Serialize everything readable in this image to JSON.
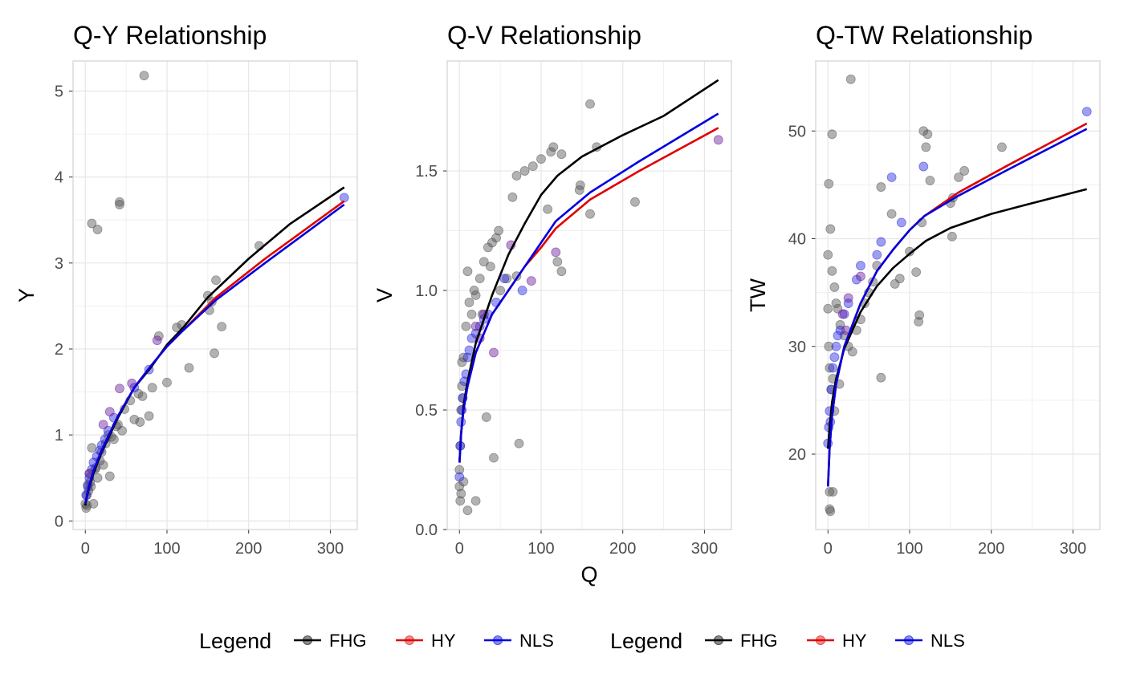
{
  "legend": {
    "title": "Legend",
    "items": [
      "FHG",
      "HY",
      "NLS"
    ]
  },
  "colors": {
    "FHG": "#000000",
    "HY": "#e00000",
    "NLS": "#0000e0",
    "grid": "#e6e6e6",
    "panel_border": "#d2d2d2",
    "tick_text": "#4d4d4d"
  },
  "chart_data": [
    {
      "type": "scatter",
      "title": "Q-Y Relationship",
      "xlabel": "",
      "ylabel": "Y",
      "xlim": [
        -15,
        333
      ],
      "ylim": [
        -0.1,
        5.35
      ],
      "xticks": [
        0,
        100,
        200,
        300
      ],
      "yticks": [
        0,
        1,
        2,
        3,
        4,
        5
      ],
      "grid": true,
      "points_gray": [
        [
          72,
          5.18
        ],
        [
          8,
          3.46
        ],
        [
          15,
          3.39
        ],
        [
          42,
          3.71
        ],
        [
          42,
          3.68
        ],
        [
          213,
          3.2
        ],
        [
          160,
          2.8
        ],
        [
          150,
          2.62
        ],
        [
          155,
          2.55
        ],
        [
          152,
          2.45
        ],
        [
          167,
          2.26
        ],
        [
          118,
          2.28
        ],
        [
          112,
          2.25
        ],
        [
          90,
          2.15
        ],
        [
          158,
          1.95
        ],
        [
          127,
          1.78
        ],
        [
          100,
          1.61
        ],
        [
          82,
          1.55
        ],
        [
          78,
          1.22
        ],
        [
          70,
          1.45
        ],
        [
          60,
          1.18
        ],
        [
          67,
          1.15
        ],
        [
          48,
          1.3
        ],
        [
          38,
          1.1
        ],
        [
          28,
          1.0
        ],
        [
          30,
          0.52
        ],
        [
          20,
          0.8
        ],
        [
          12,
          0.6
        ],
        [
          8,
          0.85
        ],
        [
          3,
          0.42
        ],
        [
          1,
          0.15
        ],
        [
          0,
          0.2
        ],
        [
          10,
          0.2
        ],
        [
          5,
          0.55
        ],
        [
          18,
          0.7
        ],
        [
          25,
          0.9
        ],
        [
          35,
          0.95
        ],
        [
          45,
          1.05
        ],
        [
          55,
          1.4
        ],
        [
          65,
          1.48
        ],
        [
          2,
          0.3
        ],
        [
          4,
          0.35
        ],
        [
          6,
          0.45
        ],
        [
          15,
          0.5
        ],
        [
          22,
          0.65
        ],
        [
          2,
          0.18
        ],
        [
          7,
          0.4
        ],
        [
          13,
          0.62
        ],
        [
          32,
          0.98
        ],
        [
          40,
          1.12
        ]
      ],
      "points_purple": [
        [
          42,
          1.54
        ],
        [
          30,
          1.27
        ],
        [
          22,
          1.12
        ],
        [
          57,
          1.6
        ],
        [
          88,
          2.1
        ],
        [
          5,
          0.55
        ]
      ],
      "points_blue": [
        [
          317,
          3.76
        ],
        [
          60,
          1.55
        ],
        [
          78,
          1.76
        ],
        [
          35,
          1.2
        ],
        [
          28,
          1.05
        ],
        [
          20,
          0.88
        ],
        [
          14,
          0.75
        ],
        [
          8,
          0.6
        ],
        [
          5,
          0.5
        ],
        [
          3,
          0.4
        ],
        [
          1,
          0.3
        ],
        [
          10,
          0.68
        ],
        [
          18,
          0.82
        ],
        [
          24,
          0.95
        ]
      ],
      "lines": {
        "FHG": [
          [
            0,
            0.18
          ],
          [
            2,
            0.28
          ],
          [
            5,
            0.4
          ],
          [
            10,
            0.55
          ],
          [
            20,
            0.8
          ],
          [
            40,
            1.2
          ],
          [
            60,
            1.55
          ],
          [
            80,
            1.78
          ],
          [
            100,
            2.05
          ],
          [
            120,
            2.25
          ],
          [
            150,
            2.6
          ],
          [
            200,
            3.05
          ],
          [
            250,
            3.45
          ],
          [
            317,
            3.88
          ]
        ],
        "HY": [
          [
            0,
            0.2
          ],
          [
            2,
            0.3
          ],
          [
            5,
            0.42
          ],
          [
            10,
            0.58
          ],
          [
            20,
            0.82
          ],
          [
            40,
            1.22
          ],
          [
            60,
            1.55
          ],
          [
            80,
            1.8
          ],
          [
            100,
            2.03
          ],
          [
            118,
            2.2
          ],
          [
            160,
            2.6
          ],
          [
            220,
            3.05
          ],
          [
            317,
            3.72
          ]
        ],
        "NLS": [
          [
            0,
            0.2
          ],
          [
            2,
            0.3
          ],
          [
            5,
            0.42
          ],
          [
            10,
            0.58
          ],
          [
            20,
            0.82
          ],
          [
            40,
            1.22
          ],
          [
            60,
            1.55
          ],
          [
            80,
            1.8
          ],
          [
            100,
            2.03
          ],
          [
            118,
            2.2
          ],
          [
            160,
            2.57
          ],
          [
            220,
            3.0
          ],
          [
            317,
            3.68
          ]
        ]
      }
    },
    {
      "type": "scatter",
      "title": "Q-V Relationship",
      "xlabel": "Q",
      "ylabel": "V",
      "xlim": [
        -15,
        333
      ],
      "ylim": [
        0.0,
        1.96
      ],
      "xticks": [
        0,
        100,
        200,
        300
      ],
      "yticks": [
        0.0,
        0.5,
        1.0,
        1.5
      ],
      "grid": true,
      "points_gray": [
        [
          160,
          1.78
        ],
        [
          115,
          1.6
        ],
        [
          112,
          1.58
        ],
        [
          125,
          1.57
        ],
        [
          100,
          1.55
        ],
        [
          90,
          1.52
        ],
        [
          80,
          1.5
        ],
        [
          70,
          1.48
        ],
        [
          168,
          1.6
        ],
        [
          148,
          1.44
        ],
        [
          147,
          1.42
        ],
        [
          160,
          1.32
        ],
        [
          215,
          1.37
        ],
        [
          108,
          1.34
        ],
        [
          65,
          1.39
        ],
        [
          120,
          1.12
        ],
        [
          125,
          1.08
        ],
        [
          70,
          1.06
        ],
        [
          48,
          1.25
        ],
        [
          45,
          1.22
        ],
        [
          40,
          1.2
        ],
        [
          35,
          1.18
        ],
        [
          30,
          1.12
        ],
        [
          25,
          1.05
        ],
        [
          20,
          0.98
        ],
        [
          15,
          0.9
        ],
        [
          10,
          1.08
        ],
        [
          8,
          0.85
        ],
        [
          5,
          0.72
        ],
        [
          3,
          0.6
        ],
        [
          2,
          0.5
        ],
        [
          1,
          0.35
        ],
        [
          0,
          0.25
        ],
        [
          0,
          0.18
        ],
        [
          1,
          0.12
        ],
        [
          10,
          0.08
        ],
        [
          20,
          0.12
        ],
        [
          42,
          0.3
        ],
        [
          73,
          0.36
        ],
        [
          33,
          0.47
        ],
        [
          5,
          0.2
        ],
        [
          2,
          0.15
        ],
        [
          3,
          0.7
        ],
        [
          4,
          0.55
        ],
        [
          12,
          0.95
        ],
        [
          18,
          1.0
        ],
        [
          28,
          0.9
        ],
        [
          38,
          1.1
        ],
        [
          50,
          1.0
        ],
        [
          58,
          1.05
        ]
      ],
      "points_purple": [
        [
          63,
          1.19
        ],
        [
          30,
          0.9
        ],
        [
          42,
          0.74
        ],
        [
          88,
          1.04
        ],
        [
          118,
          1.16
        ],
        [
          20,
          0.85
        ],
        [
          25,
          0.8
        ],
        [
          317,
          1.63
        ]
      ],
      "points_blue": [
        [
          77,
          1.0
        ],
        [
          55,
          1.05
        ],
        [
          35,
          0.9
        ],
        [
          25,
          0.85
        ],
        [
          15,
          0.8
        ],
        [
          10,
          0.72
        ],
        [
          6,
          0.62
        ],
        [
          4,
          0.55
        ],
        [
          2,
          0.45
        ],
        [
          1,
          0.35
        ],
        [
          0,
          0.22
        ],
        [
          3,
          0.5
        ],
        [
          8,
          0.65
        ],
        [
          12,
          0.75
        ],
        [
          20,
          0.82
        ],
        [
          30,
          0.88
        ],
        [
          45,
          0.95
        ]
      ],
      "lines": {
        "FHG": [
          [
            0,
            0.28
          ],
          [
            2,
            0.4
          ],
          [
            5,
            0.52
          ],
          [
            10,
            0.62
          ],
          [
            20,
            0.78
          ],
          [
            40,
            0.98
          ],
          [
            60,
            1.15
          ],
          [
            80,
            1.28
          ],
          [
            100,
            1.4
          ],
          [
            120,
            1.48
          ],
          [
            150,
            1.56
          ],
          [
            200,
            1.65
          ],
          [
            250,
            1.73
          ],
          [
            317,
            1.88
          ]
        ],
        "HY": [
          [
            0,
            0.28
          ],
          [
            2,
            0.4
          ],
          [
            5,
            0.5
          ],
          [
            10,
            0.6
          ],
          [
            20,
            0.74
          ],
          [
            40,
            0.9
          ],
          [
            60,
            1.0
          ],
          [
            80,
            1.1
          ],
          [
            100,
            1.18
          ],
          [
            118,
            1.26
          ],
          [
            160,
            1.38
          ],
          [
            220,
            1.5
          ],
          [
            317,
            1.68
          ]
        ],
        "NLS": [
          [
            0,
            0.28
          ],
          [
            2,
            0.4
          ],
          [
            5,
            0.5
          ],
          [
            10,
            0.6
          ],
          [
            20,
            0.74
          ],
          [
            40,
            0.9
          ],
          [
            60,
            1.0
          ],
          [
            80,
            1.1
          ],
          [
            100,
            1.2
          ],
          [
            118,
            1.29
          ],
          [
            160,
            1.41
          ],
          [
            220,
            1.54
          ],
          [
            317,
            1.74
          ]
        ]
      }
    },
    {
      "type": "scatter",
      "title": "Q-TW Relationship",
      "xlabel": "",
      "ylabel": "TW",
      "xlim": [
        -15,
        333
      ],
      "ylim": [
        13,
        56.5
      ],
      "xticks": [
        0,
        100,
        200,
        300
      ],
      "yticks": [
        20,
        30,
        40,
        50
      ],
      "grid": true,
      "points_gray": [
        [
          28,
          54.8
        ],
        [
          117,
          50.0
        ],
        [
          122,
          49.7
        ],
        [
          5,
          49.7
        ],
        [
          120,
          48.5
        ],
        [
          213,
          48.5
        ],
        [
          167,
          46.3
        ],
        [
          160,
          45.7
        ],
        [
          1,
          45.1
        ],
        [
          125,
          45.4
        ],
        [
          65,
          44.8
        ],
        [
          153,
          43.8
        ],
        [
          150,
          43.3
        ],
        [
          78,
          42.3
        ],
        [
          115,
          41.5
        ],
        [
          3,
          40.9
        ],
        [
          152,
          40.2
        ],
        [
          100,
          38.8
        ],
        [
          88,
          36.3
        ],
        [
          82,
          35.8
        ],
        [
          108,
          36.9
        ],
        [
          112,
          32.9
        ],
        [
          111,
          32.3
        ],
        [
          65,
          27.1
        ],
        [
          2,
          16.5
        ],
        [
          6,
          16.5
        ],
        [
          2,
          14.9
        ],
        [
          3,
          14.7
        ],
        [
          0,
          38.5
        ],
        [
          5,
          37.0
        ],
        [
          8,
          35.5
        ],
        [
          10,
          34.0
        ],
        [
          12,
          33.5
        ],
        [
          15,
          32.0
        ],
        [
          20,
          31.0
        ],
        [
          25,
          30.0
        ],
        [
          30,
          29.5
        ],
        [
          35,
          31.5
        ],
        [
          40,
          32.5
        ],
        [
          45,
          34.0
        ],
        [
          50,
          35.0
        ],
        [
          55,
          36.0
        ],
        [
          60,
          37.5
        ],
        [
          0,
          33.5
        ],
        [
          1,
          30.0
        ],
        [
          2,
          28.0
        ],
        [
          4,
          26.0
        ],
        [
          6,
          27.0
        ],
        [
          8,
          24.0
        ],
        [
          14,
          26.5
        ]
      ],
      "points_purple": [
        [
          25,
          34.5
        ],
        [
          40,
          36.5
        ],
        [
          18,
          33.0
        ],
        [
          22,
          31.5
        ]
      ],
      "points_blue": [
        [
          317,
          51.8
        ],
        [
          117,
          46.7
        ],
        [
          78,
          45.7
        ],
        [
          90,
          41.5
        ],
        [
          60,
          38.5
        ],
        [
          65,
          39.7
        ],
        [
          40,
          37.5
        ],
        [
          35,
          36.2
        ],
        [
          25,
          34.0
        ],
        [
          20,
          33.0
        ],
        [
          15,
          31.5
        ],
        [
          10,
          30.0
        ],
        [
          6,
          28.0
        ],
        [
          4,
          26.0
        ],
        [
          2,
          24.0
        ],
        [
          1,
          22.5
        ],
        [
          0,
          21.0
        ],
        [
          3,
          23.0
        ],
        [
          8,
          29.0
        ],
        [
          12,
          31.0
        ]
      ],
      "lines": {
        "FHG": [
          [
            0,
            20.5
          ],
          [
            2,
            22.5
          ],
          [
            5,
            24.8
          ],
          [
            10,
            27.0
          ],
          [
            20,
            29.8
          ],
          [
            40,
            33.2
          ],
          [
            60,
            35.6
          ],
          [
            80,
            37.3
          ],
          [
            100,
            38.6
          ],
          [
            120,
            39.8
          ],
          [
            150,
            41.0
          ],
          [
            200,
            42.3
          ],
          [
            250,
            43.3
          ],
          [
            317,
            44.6
          ]
        ],
        "HY": [
          [
            0,
            17.0
          ],
          [
            2,
            20.5
          ],
          [
            5,
            23.5
          ],
          [
            10,
            26.5
          ],
          [
            20,
            30.0
          ],
          [
            40,
            34.0
          ],
          [
            60,
            37.0
          ],
          [
            80,
            39.0
          ],
          [
            100,
            40.8
          ],
          [
            118,
            42.1
          ],
          [
            160,
            44.3
          ],
          [
            220,
            46.8
          ],
          [
            317,
            50.7
          ]
        ],
        "NLS": [
          [
            0,
            17.0
          ],
          [
            2,
            20.5
          ],
          [
            5,
            23.5
          ],
          [
            10,
            26.5
          ],
          [
            20,
            30.0
          ],
          [
            40,
            34.0
          ],
          [
            60,
            37.0
          ],
          [
            80,
            39.0
          ],
          [
            100,
            40.8
          ],
          [
            118,
            42.1
          ],
          [
            160,
            44.0
          ],
          [
            220,
            46.4
          ],
          [
            317,
            50.2
          ]
        ]
      }
    }
  ]
}
